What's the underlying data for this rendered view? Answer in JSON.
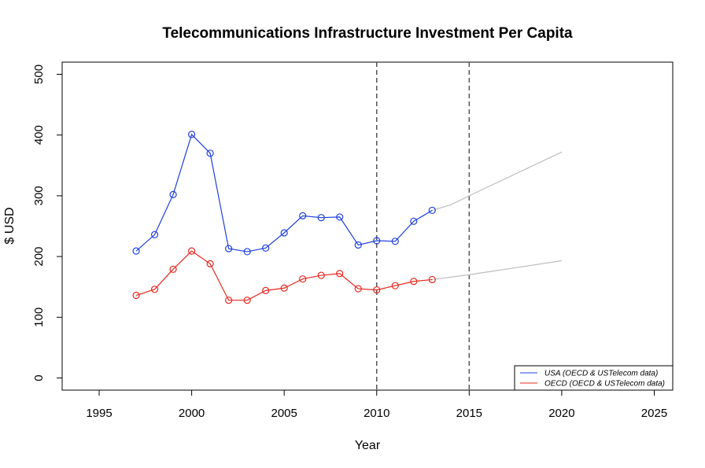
{
  "chart_data": {
    "type": "line",
    "title": "Telecommunications Infrastructure Investment Per Capita",
    "xlabel": "Year",
    "ylabel": "$ USD",
    "xlim": [
      1993,
      2026
    ],
    "ylim": [
      -20,
      520
    ],
    "xticks": [
      1995,
      2000,
      2005,
      2010,
      2015,
      2020,
      2025
    ],
    "yticks": [
      0,
      100,
      200,
      300,
      400,
      500
    ],
    "vlines": [
      2010,
      2015
    ],
    "grid": false,
    "legend_position": "bottom-right",
    "series": [
      {
        "name": "USA (OECD & USTelecom data)",
        "color": "#1f3fe0",
        "x": [
          1997,
          1998,
          1999,
          2000,
          2001,
          2002,
          2003,
          2004,
          2005,
          2006,
          2007,
          2008,
          2009,
          2010,
          2011,
          2012,
          2013
        ],
        "values": [
          209,
          236,
          302,
          401,
          370,
          213,
          208,
          214,
          239,
          267,
          264,
          265,
          219,
          226,
          225,
          258,
          276
        ]
      },
      {
        "name": "OECD (OECD & USTelecom data)",
        "color": "#e8281e",
        "x": [
          1997,
          1998,
          1999,
          2000,
          2001,
          2002,
          2003,
          2004,
          2005,
          2006,
          2007,
          2008,
          2009,
          2010,
          2011,
          2012,
          2013
        ],
        "values": [
          136,
          146,
          179,
          209,
          188,
          128,
          128,
          144,
          148,
          163,
          169,
          172,
          147,
          145,
          152,
          159,
          162
        ]
      }
    ],
    "projections": [
      {
        "name": "USA projection",
        "color": "#bdbdbd",
        "x": [
          2013,
          2014,
          2015,
          2020
        ],
        "values": [
          276,
          285,
          300,
          372
        ]
      },
      {
        "name": "OECD projection",
        "color": "#bdbdbd",
        "x": [
          2013,
          2015,
          2020
        ],
        "values": [
          162,
          170,
          193
        ]
      }
    ]
  }
}
